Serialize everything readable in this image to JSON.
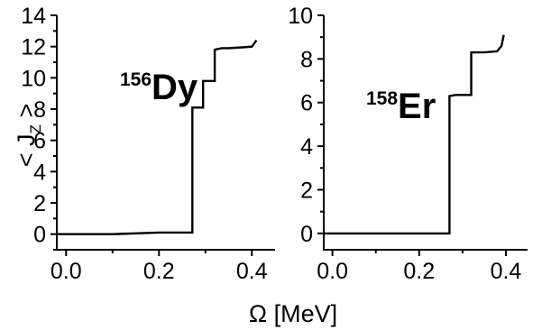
{
  "chart_data": [
    {
      "type": "line",
      "annotation": {
        "mass": "156",
        "element": "Dy"
      },
      "xlabel": "Ω [MeV]",
      "ylabel": "< J_Z >",
      "xlim": [
        -0.02,
        0.45
      ],
      "ylim": [
        -1,
        14
      ],
      "xticks": [
        0.0,
        0.2,
        0.4
      ],
      "xtick_labels": [
        "0.0",
        "0.2",
        "0.4"
      ],
      "yticks": [
        0,
        2,
        4,
        6,
        8,
        10,
        12,
        14
      ],
      "ytick_labels": [
        "0",
        "2",
        "4",
        "6",
        "8",
        "10",
        "12",
        "14"
      ],
      "series": [
        {
          "x": [
            -0.02,
            0.1,
            0.2,
            0.272,
            0.272,
            0.285,
            0.285,
            0.295,
            0.295,
            0.31,
            0.31,
            0.32,
            0.32,
            0.335,
            0.35,
            0.38,
            0.4,
            0.41
          ],
          "y": [
            0.0,
            0.0,
            0.1,
            0.1,
            8.1,
            8.1,
            8.1,
            8.1,
            9.8,
            9.8,
            9.8,
            9.8,
            11.8,
            11.9,
            11.9,
            11.95,
            12.0,
            12.4
          ]
        }
      ]
    },
    {
      "type": "line",
      "annotation": {
        "mass": "158",
        "element": "Er"
      },
      "xlabel": "",
      "ylabel": "",
      "xlim": [
        -0.02,
        0.45
      ],
      "ylim": [
        -0.75,
        10
      ],
      "xticks": [
        0.0,
        0.2,
        0.4
      ],
      "xtick_labels": [
        "0.0",
        "0.2",
        "0.4"
      ],
      "yticks": [
        0,
        2,
        4,
        6,
        8,
        10
      ],
      "ytick_labels": [
        "0",
        "2",
        "4",
        "6",
        "8",
        "10"
      ],
      "series": [
        {
          "x": [
            -0.02,
            0.1,
            0.2,
            0.27,
            0.27,
            0.285,
            0.3,
            0.32,
            0.32,
            0.35,
            0.38,
            0.39,
            0.395
          ],
          "y": [
            0.0,
            0.0,
            0.0,
            0.0,
            6.3,
            6.35,
            6.35,
            6.35,
            8.3,
            8.3,
            8.35,
            8.6,
            9.1
          ]
        }
      ]
    }
  ],
  "shared_xlabel": "Ω [MeV]"
}
